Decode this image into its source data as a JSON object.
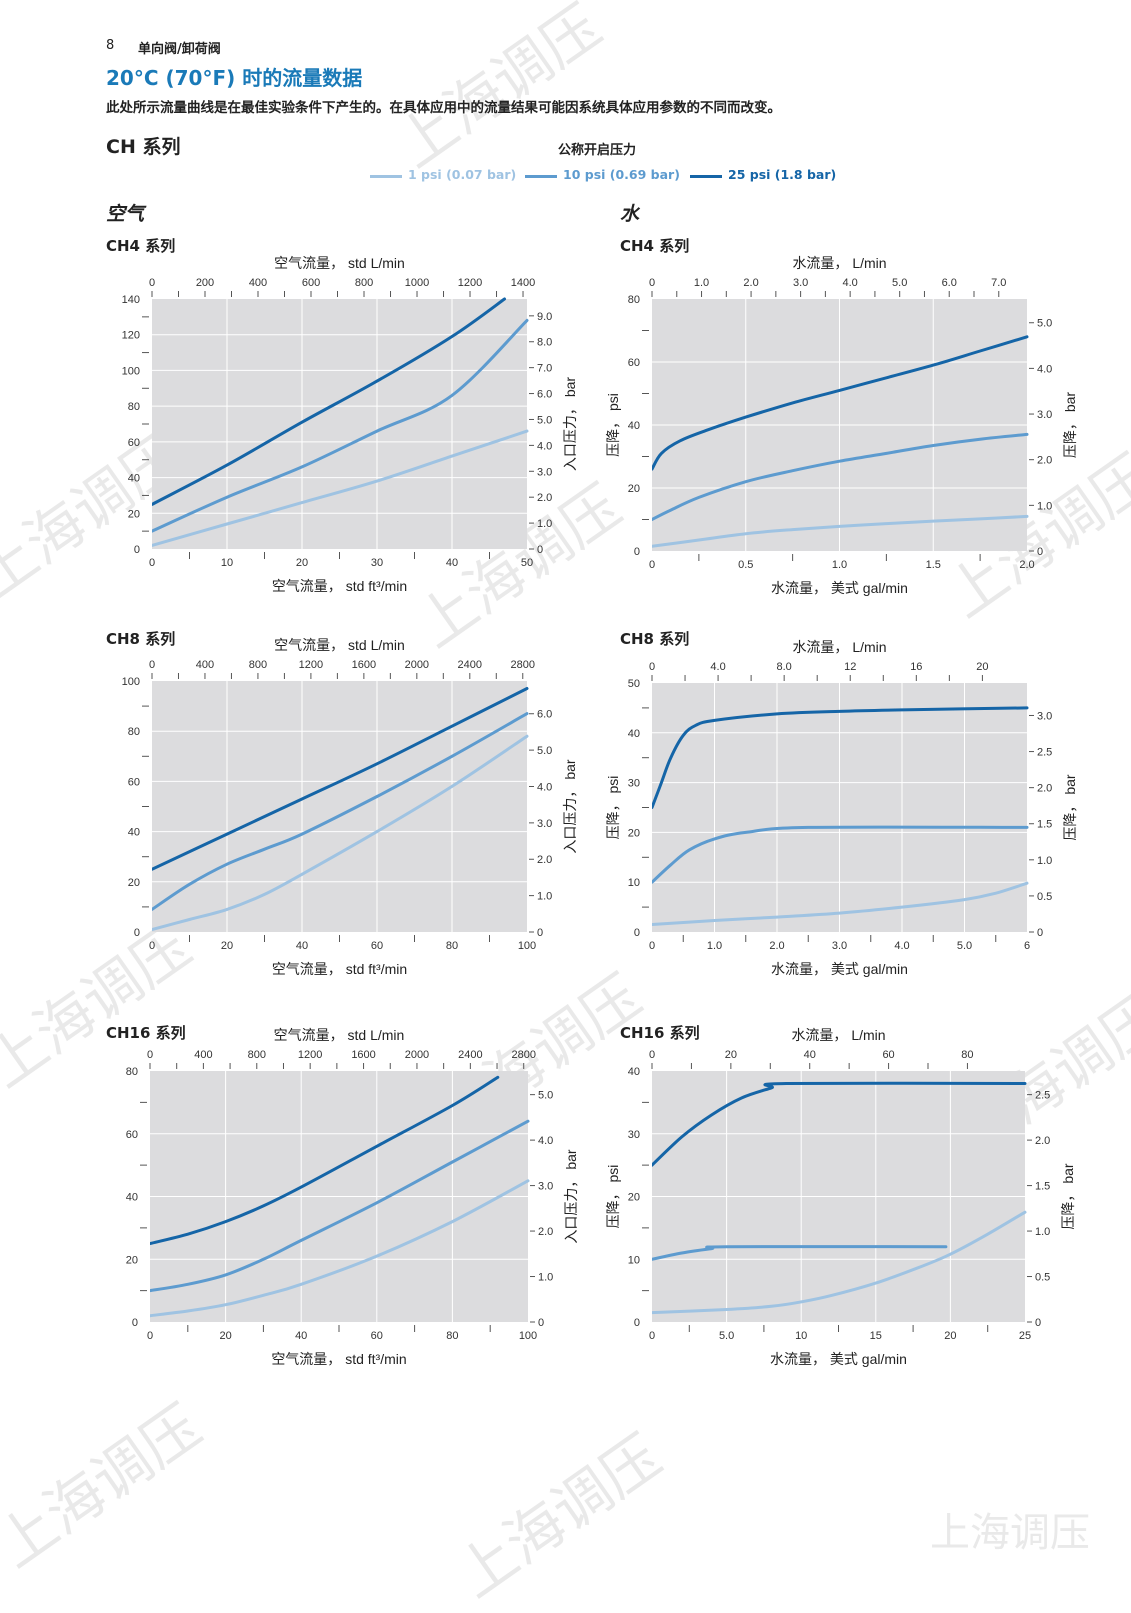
{
  "header": {
    "page_number": "8",
    "running_head": "单向阀/卸荷阀",
    "title": "20°C (70°F) 时的流量数据",
    "note": "此处所示流量曲线是在最佳实验条件下产生的。在具体应用中的流量结果可能因系统具体应用参数的不同而改变。"
  },
  "series_heading": "CH 系列",
  "legend": {
    "title": "公称开启压力",
    "items": [
      {
        "label": "1 psi (0.07 bar)",
        "color": "#9fc3e2"
      },
      {
        "label": "10 psi (0.69 bar)",
        "color": "#5d9bcf"
      },
      {
        "label": "25 psi (1.8 bar)",
        "color": "#1565a7"
      }
    ]
  },
  "columns": {
    "air": "空气",
    "water": "水"
  },
  "watermark": "上海调压",
  "chart_data": [
    {
      "type": "line",
      "heading": "CH4 系列",
      "xlabel_top": "空气流量， std L/min",
      "xlabel_bottom": "空气流量， std ft³/min",
      "ylabel_right": "入口压力， bar",
      "ylabel_left": "",
      "xlim": [
        0,
        50
      ],
      "ylim": [
        0,
        140
      ],
      "y_right_lim": [
        0,
        9.65
      ],
      "x_top_lim": [
        0,
        1415
      ],
      "x_ticks": [
        0,
        10,
        20,
        30,
        40,
        50
      ],
      "x_tick_labels": [
        "0",
        "10",
        "20",
        "30",
        "40",
        "50"
      ],
      "y_ticks": [
        0,
        20,
        40,
        60,
        80,
        100,
        120,
        140
      ],
      "y_tick_labels": [
        "0",
        "20",
        "40",
        "60",
        "80",
        "100",
        "120",
        "140"
      ],
      "y_right_ticks": [
        0,
        1,
        2,
        3,
        4,
        5,
        6,
        7,
        8,
        9
      ],
      "y_right_tick_labels": [
        "0",
        "1.0",
        "2.0",
        "3.0",
        "4.0",
        "5.0",
        "6.0",
        "7.0",
        "8.0",
        "9.0"
      ],
      "x_top_ticks": [
        0,
        200,
        400,
        600,
        800,
        1000,
        1200,
        1400
      ],
      "x_top_tick_labels": [
        "0",
        "200",
        "400",
        "600",
        "800",
        "1000",
        "1200",
        "1400"
      ],
      "series": [
        {
          "x": [
            0,
            10,
            20,
            30,
            40,
            50
          ],
          "y": [
            2,
            14,
            26,
            38,
            52,
            66
          ]
        },
        {
          "x": [
            0,
            10,
            20,
            30,
            40,
            50
          ],
          "y": [
            10,
            29,
            46,
            66,
            86,
            128
          ]
        },
        {
          "x": [
            0,
            10,
            20,
            30,
            40,
            47
          ],
          "y": [
            25,
            47,
            71,
            94,
            119,
            140
          ]
        }
      ]
    },
    {
      "type": "line",
      "heading": "CH4 系列",
      "xlabel_top": "水流量， L/min",
      "xlabel_bottom": "水流量， 美式 gal/min",
      "ylabel_left": "压降， psi",
      "ylabel_right": "压降， bar",
      "xlim": [
        0,
        2
      ],
      "ylim": [
        0,
        80
      ],
      "y_right_lim": [
        0,
        5.52
      ],
      "x_top_lim": [
        0,
        7.57
      ],
      "x_ticks": [
        0,
        0.5,
        1,
        1.5,
        2
      ],
      "x_tick_labels": [
        "0",
        "0.5",
        "1.0",
        "1.5",
        "2.0"
      ],
      "y_ticks": [
        0,
        20,
        40,
        60,
        80
      ],
      "y_tick_labels": [
        "0",
        "20",
        "40",
        "60",
        "80"
      ],
      "y_right_ticks": [
        0,
        1,
        2,
        3,
        4,
        5
      ],
      "y_right_tick_labels": [
        "0",
        "1.0",
        "2.0",
        "3.0",
        "4.0",
        "5.0"
      ],
      "x_top_ticks": [
        0,
        1,
        2,
        3,
        4,
        5,
        6,
        7
      ],
      "x_top_tick_labels": [
        "0",
        "1.0",
        "2.0",
        "3.0",
        "4.0",
        "5.0",
        "6.0",
        "7.0"
      ],
      "series": [
        {
          "x": [
            0,
            0.25,
            0.5,
            0.75,
            1,
            1.25,
            1.5,
            1.75,
            2
          ],
          "y": [
            1.5,
            3.5,
            5.5,
            6.8,
            7.8,
            8.7,
            9.5,
            10.2,
            11
          ]
        },
        {
          "x": [
            0,
            0.1,
            0.25,
            0.5,
            0.75,
            1,
            1.25,
            1.5,
            1.75,
            2
          ],
          "y": [
            10,
            13,
            17,
            22,
            25.5,
            28.5,
            31,
            33.5,
            35.5,
            37
          ]
        },
        {
          "x": [
            0,
            0.05,
            0.15,
            0.3,
            0.5,
            0.75,
            1,
            1.25,
            1.5,
            1.75,
            2
          ],
          "y": [
            26,
            31,
            35,
            38.5,
            42.5,
            47,
            51,
            55,
            59,
            63.5,
            68
          ]
        }
      ]
    },
    {
      "type": "line",
      "heading": "CH8 系列",
      "xlabel_top": "空气流量， std L/min",
      "xlabel_bottom": "空气流量， std ft³/min",
      "ylabel_right": "入口压力， bar",
      "ylabel_left": "",
      "xlim": [
        0,
        100
      ],
      "ylim": [
        0,
        100
      ],
      "y_right_lim": [
        0,
        6.9
      ],
      "x_top_lim": [
        0,
        2832
      ],
      "x_ticks": [
        0,
        20,
        40,
        60,
        80,
        100
      ],
      "x_tick_labels": [
        "0",
        "20",
        "40",
        "60",
        "80",
        "100"
      ],
      "y_ticks": [
        0,
        20,
        40,
        60,
        80,
        100
      ],
      "y_tick_labels": [
        "0",
        "20",
        "40",
        "60",
        "80",
        "100"
      ],
      "y_right_ticks": [
        0,
        1,
        2,
        3,
        4,
        5,
        6
      ],
      "y_right_tick_labels": [
        "0",
        "1.0",
        "2.0",
        "3.0",
        "4.0",
        "5.0",
        "6.0"
      ],
      "x_top_ticks": [
        0,
        400,
        800,
        1200,
        1600,
        2000,
        2400,
        2800
      ],
      "x_top_tick_labels": [
        "0",
        "400",
        "800",
        "1200",
        "1600",
        "2000",
        "2400",
        "2800"
      ],
      "series": [
        {
          "x": [
            0,
            10,
            20,
            30,
            40,
            60,
            80,
            100
          ],
          "y": [
            1,
            5,
            9,
            15,
            23,
            40,
            58,
            78
          ]
        },
        {
          "x": [
            0,
            10,
            20,
            30,
            40,
            60,
            80,
            100
          ],
          "y": [
            9,
            19,
            27,
            33,
            39,
            54,
            70,
            87
          ]
        },
        {
          "x": [
            0,
            20,
            40,
            60,
            80,
            100
          ],
          "y": [
            25,
            39,
            53,
            67,
            82,
            97
          ]
        }
      ]
    },
    {
      "type": "line",
      "heading": "CH8 系列",
      "xlabel_top": "水流量， L/min",
      "xlabel_bottom": "水流量， 美式 gal/min",
      "ylabel_left": "压降， psi",
      "ylabel_right": "压降， bar",
      "xlim": [
        0,
        6
      ],
      "ylim": [
        0,
        50
      ],
      "y_right_lim": [
        0,
        3.45
      ],
      "x_top_lim": [
        0,
        22.7
      ],
      "x_ticks": [
        0,
        1,
        2,
        3,
        4,
        5,
        6
      ],
      "x_tick_labels": [
        "0",
        "1.0",
        "2.0",
        "3.0",
        "4.0",
        "5.0",
        "6"
      ],
      "y_ticks": [
        0,
        10,
        20,
        30,
        40,
        50
      ],
      "y_tick_labels": [
        "0",
        "10",
        "20",
        "30",
        "40",
        "50"
      ],
      "y_right_ticks": [
        0,
        0.5,
        1,
        1.5,
        2,
        2.5,
        3
      ],
      "y_right_tick_labels": [
        "0",
        "0.5",
        "1.0",
        "1.5",
        "2.0",
        "2.5",
        "3.0"
      ],
      "x_top_ticks": [
        0,
        4,
        8,
        12,
        16,
        20
      ],
      "x_top_tick_labels": [
        "0",
        "4.0",
        "8.0",
        "12",
        "16",
        "20"
      ],
      "series": [
        {
          "x": [
            0,
            1,
            2,
            3,
            4,
            5,
            5.5,
            6
          ],
          "y": [
            1.5,
            2.3,
            3,
            3.8,
            5,
            6.5,
            7.8,
            9.8
          ]
        },
        {
          "x": [
            0,
            0.3,
            0.6,
            1,
            1.5,
            2.5,
            6
          ],
          "y": [
            10,
            13.5,
            16.5,
            18.7,
            20,
            21,
            21
          ]
        },
        {
          "x": [
            0,
            0.15,
            0.3,
            0.5,
            0.7,
            1,
            2,
            3,
            4,
            6
          ],
          "y": [
            25,
            30,
            35,
            39.5,
            41.5,
            42.5,
            43.8,
            44.3,
            44.6,
            45
          ]
        }
      ]
    },
    {
      "type": "line",
      "heading": "CH16 系列",
      "xlabel_top": "空气流量， std L/min",
      "xlabel_bottom": "空气流量， std ft³/min",
      "ylabel_right": "入口压力， bar",
      "ylabel_left": "",
      "xlim": [
        0,
        100
      ],
      "ylim": [
        0,
        80
      ],
      "y_right_lim": [
        0,
        5.52
      ],
      "x_top_lim": [
        0,
        2832
      ],
      "x_ticks": [
        0,
        20,
        40,
        60,
        80,
        100
      ],
      "x_tick_labels": [
        "0",
        "20",
        "40",
        "60",
        "80",
        "100"
      ],
      "y_ticks": [
        0,
        20,
        40,
        60,
        80
      ],
      "y_tick_labels": [
        "0",
        "20",
        "40",
        "60",
        "80"
      ],
      "y_right_ticks": [
        0,
        1,
        2,
        3,
        4,
        5
      ],
      "y_right_tick_labels": [
        "0",
        "1.0",
        "2.0",
        "3.0",
        "4.0",
        "5.0"
      ],
      "x_top_ticks": [
        0,
        400,
        800,
        1200,
        1600,
        2000,
        2400,
        2800
      ],
      "x_top_tick_labels": [
        "0",
        "400",
        "800",
        "1200",
        "1600",
        "2000",
        "2400",
        "2800"
      ],
      "series": [
        {
          "x": [
            0,
            10,
            20,
            30,
            40,
            60,
            80,
            100
          ],
          "y": [
            2,
            3.5,
            5.5,
            8.5,
            12,
            21,
            32,
            45
          ]
        },
        {
          "x": [
            0,
            10,
            20,
            30,
            40,
            60,
            80,
            100
          ],
          "y": [
            10,
            12,
            15,
            20,
            26,
            38,
            51,
            64
          ]
        },
        {
          "x": [
            0,
            10,
            20,
            30,
            40,
            60,
            80,
            92
          ],
          "y": [
            25,
            28,
            32,
            37,
            43,
            56,
            69,
            78
          ]
        }
      ]
    },
    {
      "type": "line",
      "heading": "CH16 系列",
      "xlabel_top": "水流量， L/min",
      "xlabel_bottom": "水流量， 美式 gal/min",
      "ylabel_left": "压降， psi",
      "ylabel_right": "压降， bar",
      "xlim": [
        0,
        25
      ],
      "ylim": [
        0,
        40
      ],
      "y_right_lim": [
        0,
        2.76
      ],
      "x_top_lim": [
        0,
        94.6
      ],
      "x_ticks": [
        0,
        5,
        10,
        15,
        20,
        25
      ],
      "x_tick_labels": [
        "0",
        "5.0",
        "10",
        "15",
        "20",
        "25"
      ],
      "y_ticks": [
        0,
        10,
        20,
        30,
        40
      ],
      "y_tick_labels": [
        "0",
        "10",
        "20",
        "30",
        "40"
      ],
      "y_right_ticks": [
        0,
        0.5,
        1,
        1.5,
        2,
        2.5
      ],
      "y_right_tick_labels": [
        "0",
        "0.5",
        "1.0",
        "1.5",
        "2.0",
        "2.5"
      ],
      "x_top_ticks": [
        0,
        20,
        40,
        60,
        80
      ],
      "x_top_tick_labels": [
        "0",
        "20",
        "40",
        "60",
        "80"
      ],
      "series": [
        {
          "x": [
            0,
            5,
            8,
            10,
            12,
            15,
            18,
            20,
            22.5,
            25
          ],
          "y": [
            1.5,
            2,
            2.5,
            3.2,
            4.2,
            6.2,
            8.8,
            10.8,
            14,
            17.5
          ]
        },
        {
          "x": [
            0,
            2,
            4,
            5,
            19.7
          ],
          "y": [
            10,
            11,
            11.7,
            12,
            12
          ]
        },
        {
          "x": [
            0,
            2,
            4,
            6,
            8,
            9,
            25
          ],
          "y": [
            25,
            29.5,
            33,
            35.7,
            37.3,
            38,
            38
          ]
        }
      ]
    }
  ]
}
